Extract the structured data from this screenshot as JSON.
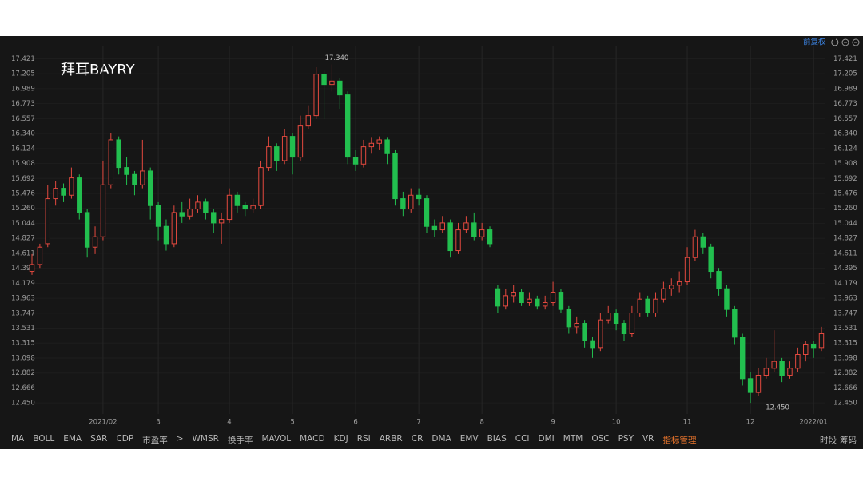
{
  "header": {
    "title": "拜耳BAYRY",
    "adjust": "前复权"
  },
  "chart_data": {
    "type": "candlestick",
    "categories": [
      null,
      null,
      null,
      null,
      null,
      null,
      null,
      null,
      null,
      "2021/02",
      null,
      null,
      null,
      null,
      null,
      null,
      "3",
      null,
      null,
      null,
      null,
      null,
      null,
      null,
      null,
      "4",
      null,
      null,
      null,
      null,
      null,
      null,
      null,
      "5",
      null,
      null,
      null,
      null,
      null,
      null,
      null,
      "6",
      null,
      null,
      null,
      null,
      null,
      null,
      null,
      "7",
      null,
      null,
      null,
      null,
      null,
      null,
      null,
      "8",
      null,
      null,
      null,
      null,
      null,
      null,
      null,
      null,
      "9",
      null,
      null,
      null,
      null,
      null,
      null,
      null,
      "10",
      null,
      null,
      null,
      null,
      null,
      null,
      null,
      null,
      "11",
      null,
      null,
      null,
      null,
      null,
      null,
      null,
      "12",
      null,
      null,
      null,
      null,
      null,
      null,
      null,
      "2022/01",
      null
    ],
    "open": [
      14.35,
      14.45,
      14.75,
      15.4,
      15.55,
      15.45,
      15.7,
      15.2,
      14.7,
      14.85,
      15.6,
      16.25,
      15.85,
      15.75,
      15.6,
      15.8,
      15.3,
      15.0,
      14.75,
      15.2,
      15.15,
      15.25,
      15.35,
      15.2,
      15.05,
      15.1,
      15.45,
      15.3,
      15.25,
      15.3,
      15.85,
      16.15,
      15.95,
      16.3,
      16.0,
      16.45,
      16.6,
      17.2,
      17.05,
      17.1,
      16.9,
      16.0,
      15.9,
      16.15,
      16.2,
      16.25,
      16.05,
      15.4,
      15.25,
      15.45,
      15.4,
      15.0,
      14.95,
      15.05,
      14.65,
      14.95,
      15.05,
      14.85,
      14.95,
      14.1,
      13.85,
      14.0,
      14.05,
      13.9,
      13.95,
      13.85,
      13.9,
      14.05,
      13.8,
      13.55,
      13.6,
      13.35,
      13.25,
      13.65,
      13.75,
      13.6,
      13.45,
      13.75,
      13.95,
      13.75,
      13.95,
      14.1,
      14.15,
      14.2,
      14.55,
      14.85,
      14.7,
      14.35,
      14.1,
      13.8,
      13.4,
      12.8,
      12.6,
      12.85,
      12.95,
      13.05,
      12.85,
      12.95,
      13.15,
      13.3,
      13.25
    ],
    "high": [
      14.6,
      14.75,
      15.6,
      15.65,
      15.62,
      15.85,
      15.75,
      15.25,
      15.0,
      15.95,
      16.35,
      16.3,
      16.0,
      15.8,
      16.25,
      15.85,
      15.35,
      15.1,
      15.3,
      15.35,
      15.4,
      15.45,
      15.4,
      15.25,
      15.2,
      15.55,
      15.5,
      15.35,
      15.4,
      15.95,
      16.3,
      16.2,
      16.4,
      16.35,
      16.6,
      16.75,
      17.3,
      17.25,
      17.34,
      17.15,
      16.95,
      16.1,
      16.25,
      16.28,
      16.3,
      16.28,
      16.1,
      15.5,
      15.55,
      15.55,
      15.45,
      15.1,
      15.15,
      15.1,
      15.05,
      15.15,
      15.2,
      15.05,
      15.0,
      14.15,
      14.1,
      14.15,
      14.1,
      14.05,
      14.0,
      14.0,
      14.2,
      14.1,
      13.85,
      13.7,
      13.65,
      13.4,
      13.75,
      13.85,
      13.8,
      13.65,
      13.85,
      14.05,
      14.0,
      14.05,
      14.2,
      14.25,
      14.35,
      14.7,
      14.95,
      14.9,
      14.75,
      14.4,
      14.15,
      13.85,
      13.45,
      12.9,
      12.95,
      13.1,
      13.5,
      13.1,
      13.05,
      13.25,
      13.35,
      13.35,
      13.55
    ],
    "low": [
      14.3,
      14.4,
      14.7,
      15.3,
      15.35,
      15.4,
      15.1,
      14.55,
      14.6,
      14.8,
      15.55,
      15.75,
      15.6,
      15.45,
      15.55,
      15.1,
      14.8,
      14.65,
      14.7,
      15.05,
      15.1,
      15.2,
      15.1,
      14.9,
      14.75,
      15.05,
      15.2,
      15.15,
      15.2,
      15.25,
      15.8,
      15.8,
      15.9,
      15.75,
      15.95,
      16.4,
      16.55,
      16.55,
      16.95,
      16.7,
      15.9,
      15.8,
      15.85,
      16.05,
      16.1,
      15.9,
      15.3,
      15.15,
      15.2,
      15.3,
      14.9,
      14.85,
      14.9,
      14.55,
      14.6,
      14.9,
      14.8,
      14.8,
      14.7,
      13.75,
      13.8,
      13.9,
      13.85,
      13.85,
      13.8,
      13.8,
      13.85,
      13.75,
      13.45,
      13.45,
      13.25,
      13.1,
      13.2,
      13.6,
      13.5,
      13.35,
      13.4,
      13.7,
      13.7,
      13.7,
      13.9,
      14.0,
      14.05,
      14.15,
      14.5,
      14.6,
      14.25,
      14.0,
      13.7,
      13.3,
      12.7,
      12.45,
      12.55,
      12.8,
      12.9,
      12.75,
      12.8,
      12.9,
      13.05,
      13.1,
      13.2
    ],
    "close": [
      14.45,
      14.7,
      15.4,
      15.55,
      15.45,
      15.7,
      15.2,
      14.7,
      14.85,
      15.6,
      16.25,
      15.85,
      15.75,
      15.6,
      15.8,
      15.3,
      15.0,
      14.75,
      15.2,
      15.15,
      15.25,
      15.35,
      15.2,
      15.05,
      15.1,
      15.45,
      15.3,
      15.25,
      15.3,
      15.85,
      16.15,
      15.95,
      16.3,
      16.0,
      16.45,
      16.6,
      17.2,
      17.05,
      17.1,
      16.9,
      16.0,
      15.9,
      16.15,
      16.2,
      16.25,
      16.05,
      15.4,
      15.25,
      15.45,
      15.4,
      15.0,
      14.95,
      15.05,
      14.65,
      14.95,
      15.05,
      14.85,
      14.95,
      14.75,
      13.85,
      14.0,
      14.05,
      13.9,
      13.95,
      13.85,
      13.9,
      14.05,
      13.8,
      13.55,
      13.6,
      13.35,
      13.25,
      13.65,
      13.75,
      13.6,
      13.45,
      13.75,
      13.95,
      13.75,
      13.95,
      14.1,
      14.15,
      14.2,
      14.55,
      14.85,
      14.7,
      14.35,
      14.1,
      13.8,
      13.4,
      12.8,
      12.6,
      12.85,
      12.95,
      13.05,
      12.85,
      12.95,
      13.15,
      13.3,
      13.25,
      13.45
    ],
    "up_color": "#e4493f",
    "down_color": "#22bf4f",
    "ylim": [
      12.29,
      17.6
    ],
    "yticks": [
      17.421,
      17.205,
      16.989,
      16.773,
      16.557,
      {
        "value": 16.34,
        "label": "16.340"
      },
      16.124,
      15.908,
      15.692,
      15.476,
      {
        "value": 15.26,
        "label": "15.260"
      },
      15.044,
      14.827,
      14.611,
      14.395,
      14.179,
      13.963,
      13.747,
      13.531,
      13.315,
      13.098,
      12.882,
      12.666,
      {
        "value": 12.45,
        "label": "12.450"
      }
    ],
    "max_label": {
      "value": 17.34,
      "label": "17.340"
    },
    "min_label": {
      "value": 12.45,
      "label": "12.450"
    },
    "grid": true
  },
  "toolbar": {
    "items": [
      "MA",
      "BOLL",
      "EMA",
      "SAR",
      "CDP",
      "市盈率",
      ">",
      "WMSR",
      "换手率",
      "MAVOL",
      "MACD",
      "KDJ",
      "RSI",
      "ARBR",
      "CR",
      "DMA",
      "EMV",
      "BIAS",
      "CCI",
      "DMI",
      "MTM",
      "OSC",
      "PSY",
      "VR",
      "指标管理"
    ],
    "active": "指标管理",
    "right": [
      "时段",
      "筹码"
    ]
  }
}
